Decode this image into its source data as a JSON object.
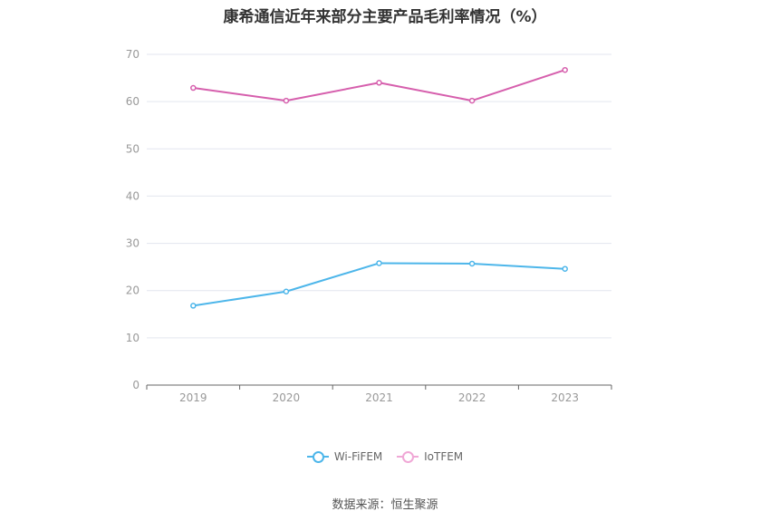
{
  "chart_data": {
    "type": "line",
    "title": "康希通信近年来部分主要产品毛利率情况（%）",
    "categories": [
      "2019",
      "2020",
      "2021",
      "2022",
      "2023"
    ],
    "ylim": [
      0,
      70
    ],
    "yticks": [
      0,
      10,
      20,
      30,
      40,
      50,
      60,
      70
    ],
    "grid": true,
    "legend_position": "bottom",
    "series": [
      {
        "name": "Wi-FiFEM",
        "color": "#4db6ea",
        "values": [
          16.8,
          19.8,
          25.8,
          25.7,
          24.6
        ]
      },
      {
        "name": "IoTFEM",
        "color": "#d65fad",
        "values": [
          62.9,
          60.2,
          64.0,
          60.2,
          66.7
        ]
      }
    ]
  },
  "source": "数据来源：恒生聚源"
}
